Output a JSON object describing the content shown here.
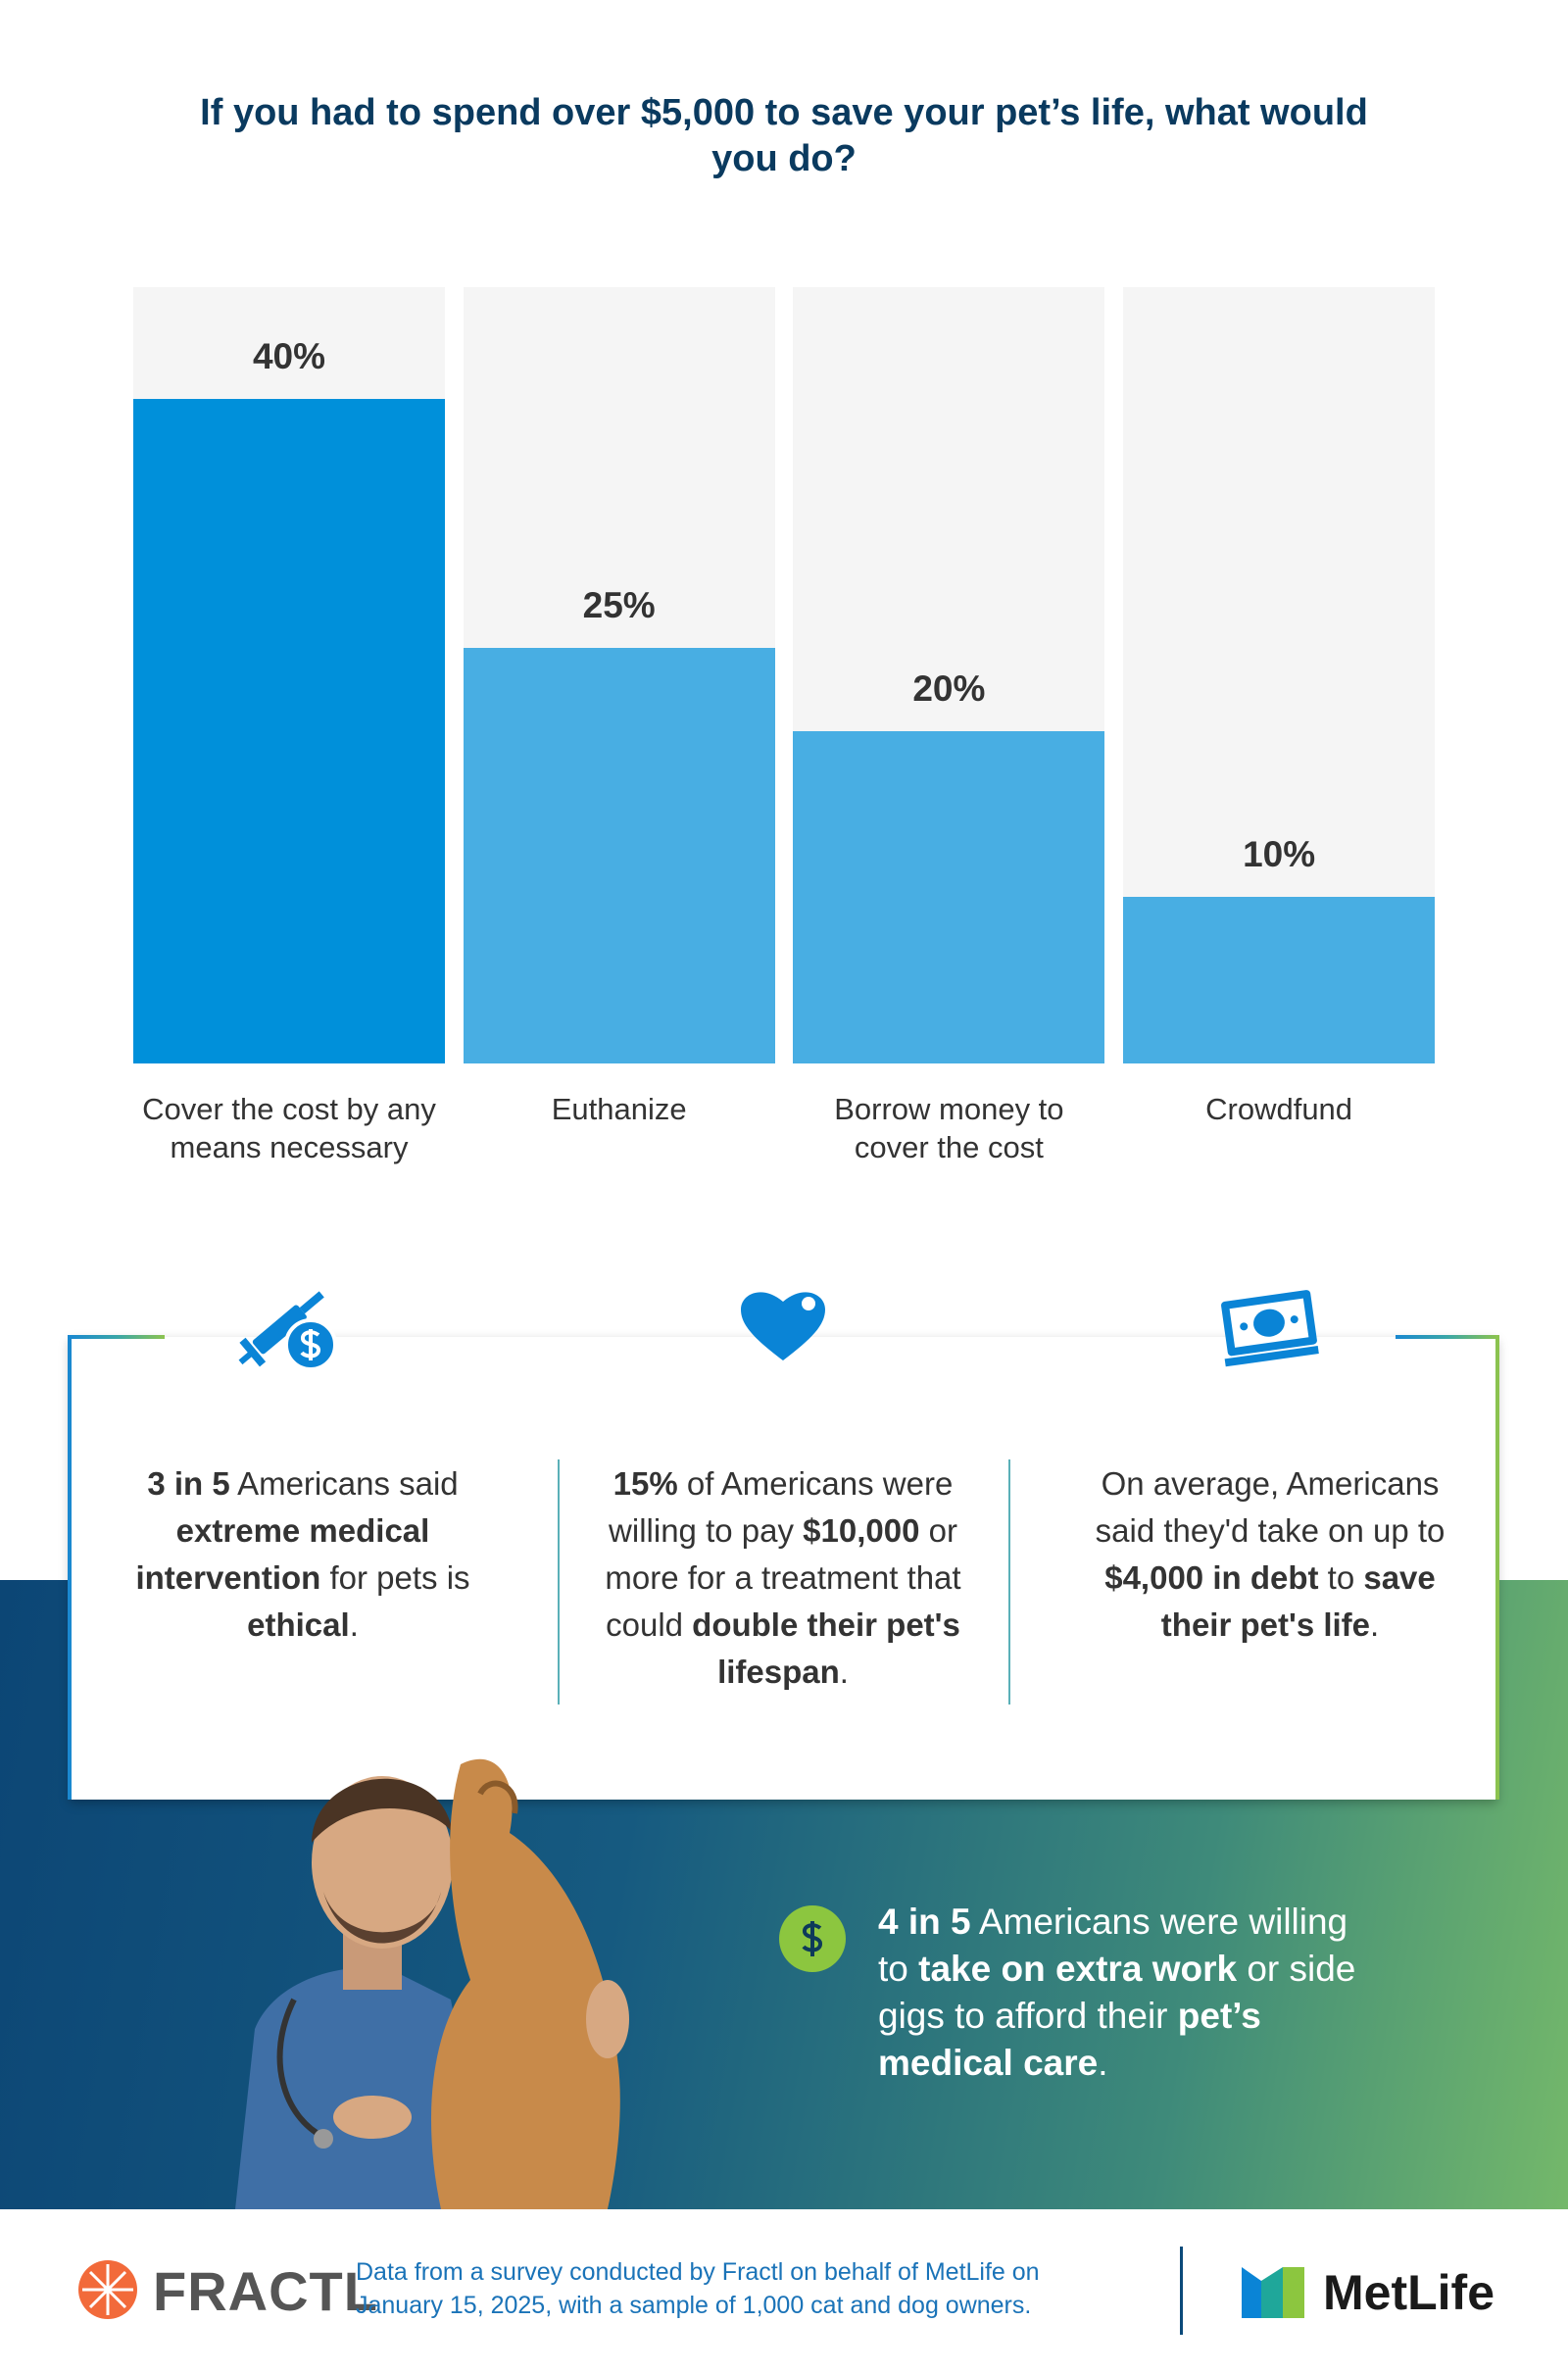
{
  "chart_data": {
    "type": "bar",
    "title": "If you had to spend over $5,000 to save your pet’s life, what would you do?",
    "categories": [
      "Cover the cost by any means necessary",
      "Euthanize",
      "Borrow money to cover the cost",
      "Crowdfund"
    ],
    "values": [
      40,
      25,
      20,
      10
    ],
    "value_labels": [
      "40%",
      "25%",
      "20%",
      "10%"
    ],
    "colors": [
      "#0090da",
      "#48aee3",
      "#48aee3",
      "#48aee3"
    ],
    "track_color": "#f5f5f5",
    "ylim": [
      0,
      46.7
    ]
  },
  "stats": [
    {
      "parts": [
        {
          "text": "3 in 5",
          "bold": true
        },
        {
          "text": " Americans said ",
          "bold": false
        },
        {
          "text": "extreme medical intervention",
          "bold": true
        },
        {
          "text": " for pets is ",
          "bold": false
        },
        {
          "text": "ethical",
          "bold": true
        },
        {
          "text": ".",
          "bold": false
        }
      ]
    },
    {
      "parts": [
        {
          "text": "15%",
          "bold": true
        },
        {
          "text": " of Americans were willing to pay ",
          "bold": false
        },
        {
          "text": "$10,000",
          "bold": true
        },
        {
          "text": " or more for a treatment that could ",
          "bold": false
        },
        {
          "text": "double their pet's lifespan",
          "bold": true
        },
        {
          "text": ".",
          "bold": false
        }
      ]
    },
    {
      "parts": [
        {
          "text": "On average, Americans said they'd take on up to ",
          "bold": false
        },
        {
          "text": "$4,000 in debt",
          "bold": true
        },
        {
          "text": " to ",
          "bold": false
        },
        {
          "text": "save their pet's life",
          "bold": true
        },
        {
          "text": ".",
          "bold": false
        }
      ]
    }
  ],
  "callout": {
    "parts": [
      {
        "text": "4 in 5",
        "bold": true
      },
      {
        "text": " Americans were willing to ",
        "bold": false
      },
      {
        "text": "take on extra work",
        "bold": true
      },
      {
        "text": " or side gigs to afford their ",
        "bold": false
      },
      {
        "text": "pet’s medical care",
        "bold": true
      },
      {
        "text": ".",
        "bold": false
      }
    ]
  },
  "footer": {
    "logo_left": "FRACTL",
    "note": "Data from a survey conducted by Fractl on behalf of MetLife on January 15, 2025, with a sample of 1,000 cat and dog owners.",
    "logo_right": "MetLife"
  }
}
